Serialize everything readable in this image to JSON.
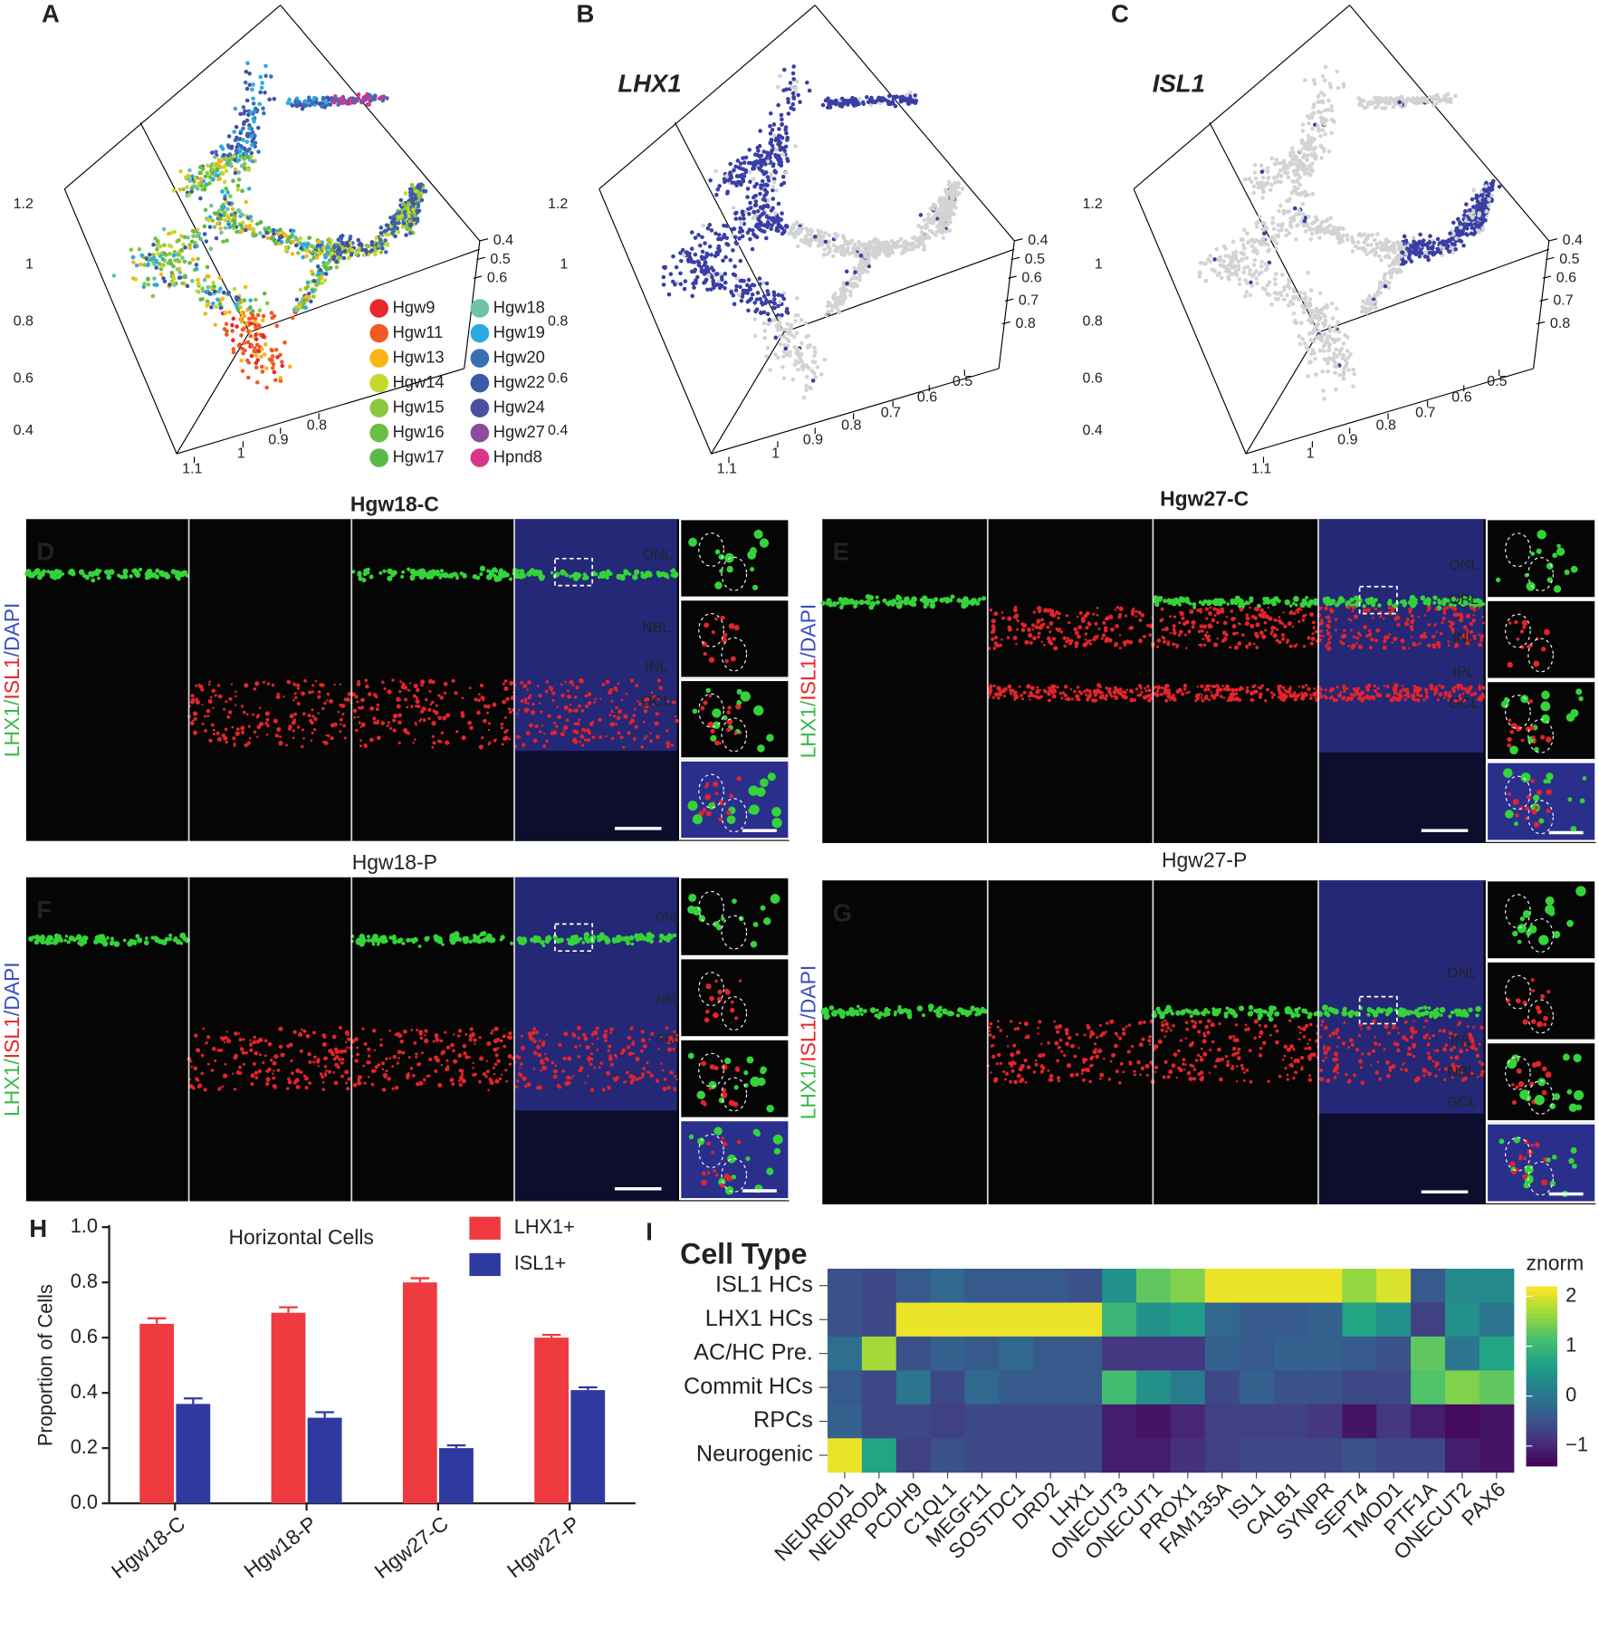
{
  "umap_panels": [
    {
      "label": "A",
      "left_ticks": [
        "1.2",
        "1",
        "0.8",
        "0.6",
        "0.4"
      ],
      "right_ticks": [
        "0.4",
        "0.5",
        "0.6"
      ],
      "bottom_ticks": [
        "1.1",
        "1",
        "0.9",
        "0.8"
      ],
      "legend": [
        {
          "name": "Hgw9",
          "color": "#e8272a"
        },
        {
          "name": "Hgw11",
          "color": "#f05a24"
        },
        {
          "name": "Hgw13",
          "color": "#fbb415"
        },
        {
          "name": "Hgw14",
          "color": "#c4d82e"
        },
        {
          "name": "Hgw15",
          "color": "#8cc63f"
        },
        {
          "name": "Hgw16",
          "color": "#6abd45"
        },
        {
          "name": "Hgw17",
          "color": "#5bb947"
        },
        {
          "name": "Hgw18",
          "color": "#6cc4a4"
        },
        {
          "name": "Hgw19",
          "color": "#29abe2"
        },
        {
          "name": "Hgw20",
          "color": "#3a6fb6"
        },
        {
          "name": "Hgw22",
          "color": "#3b5ba8"
        },
        {
          "name": "Hgw24",
          "color": "#4a4fa0"
        },
        {
          "name": "Hgw27",
          "color": "#8e4a9c"
        },
        {
          "name": "Hpnd8",
          "color": "#d9348b"
        }
      ]
    },
    {
      "label": "B",
      "title": "LHX1",
      "left_ticks": [
        "1.2",
        "1",
        "0.8",
        "0.6",
        "0.4"
      ],
      "right_ticks": [
        "0.4",
        "0.5",
        "0.6",
        "0.7",
        "0.8"
      ],
      "bottom_ticks": [
        "1.1",
        "1",
        "0.9",
        "0.8",
        "0.7",
        "0.6",
        "0.5"
      ]
    },
    {
      "label": "C",
      "title": "ISL1",
      "left_ticks": [
        "1.2",
        "1",
        "0.8",
        "0.6",
        "0.4"
      ],
      "right_ticks": [
        "0.4",
        "0.5",
        "0.6",
        "0.7",
        "0.8"
      ],
      "bottom_ticks": [
        "1.1",
        "1",
        "0.9",
        "0.8",
        "0.7",
        "0.6",
        "0.5"
      ]
    }
  ],
  "micrographs": [
    {
      "label": "D",
      "title": "Hgw18-C",
      "title_bold": true,
      "stain": [
        "LHX1",
        "/",
        "ISL1",
        "/DAPI"
      ],
      "layers": [
        "ONL",
        "NBL",
        "INL",
        "GCL"
      ]
    },
    {
      "label": "E",
      "title": "Hgw27-C",
      "title_bold": true,
      "stain": [
        "LHX1",
        "/",
        "ISL1",
        "/DAPI"
      ],
      "layers": [
        "ONL",
        "OPL",
        "INL",
        "IPL",
        "GCL"
      ]
    },
    {
      "label": "F",
      "title": "Hgw18-P",
      "title_bold": false,
      "stain": [
        "LHX1",
        "/",
        "ISL1",
        "/DAPI"
      ],
      "layers": [
        "ONL",
        "NBL",
        "GCL"
      ]
    },
    {
      "label": "G",
      "title": "Hgw27-P",
      "title_bold": false,
      "stain": [
        "LHX1",
        "/",
        "ISL1",
        "/DAPI"
      ],
      "layers": [
        "ONL",
        "INL",
        "NBL",
        "GCL"
      ]
    }
  ],
  "chart_data": [
    {
      "type": "bar",
      "panel": "H",
      "title": "Horizontal Cells",
      "y_label": "Proportion of Cells",
      "categories": [
        "Hgw18-C",
        "Hgw18-P",
        "Hgw27-C",
        "Hgw27-P"
      ],
      "series": [
        {
          "name": "LHX1+",
          "color": "#ef3b3f",
          "values": [
            0.65,
            0.69,
            0.8,
            0.6
          ],
          "errors": [
            0.02,
            0.02,
            0.015,
            0.01
          ]
        },
        {
          "name": "ISL1+",
          "color": "#2f3aa0",
          "values": [
            0.36,
            0.31,
            0.2,
            0.41
          ],
          "errors": [
            0.02,
            0.02,
            0.01,
            0.01
          ]
        }
      ],
      "ylim": [
        0,
        1
      ],
      "yticks": [
        {
          "value": 0,
          "label": "0.0"
        },
        {
          "value": 0.2,
          "label": "0.2"
        },
        {
          "value": 0.4,
          "label": "0.4"
        },
        {
          "value": 0.6,
          "label": "0.6"
        },
        {
          "value": 0.8,
          "label": "0.8"
        },
        {
          "value": 1,
          "label": "1.0"
        }
      ]
    },
    {
      "type": "heatmap",
      "panel": "I",
      "title": "Cell Type",
      "colorbar_title": "znorm",
      "colormap": "viridis",
      "rows": [
        "ISL1 HCs",
        "LHX1 HCs",
        "AC/HC Pre.",
        "Commit HCs",
        "RPCs",
        "Neurogenic"
      ],
      "columns": [
        "NEUROD1",
        "NEUROD4",
        "PCDH9",
        "C1QL1",
        "MEGF11",
        "SOSTDC1",
        "DRD2",
        "LHX1",
        "ONECUT3",
        "ONECUT1",
        "PROX1",
        "FAM135A",
        "ISL1",
        "CALB1",
        "SYNPR",
        "SEPT4",
        "TMOD1",
        "PTF1A",
        "ONECUT2",
        "PAX6"
      ],
      "values": [
        [
          -0.5,
          -0.6,
          -0.4,
          -0.2,
          -0.4,
          -0.4,
          -0.4,
          -0.5,
          0.4,
          1.3,
          1.5,
          2.1,
          2.1,
          2.1,
          2.1,
          1.6,
          2.0,
          -0.4,
          0.3,
          0.3
        ],
        [
          -0.5,
          -0.6,
          2.1,
          2.1,
          2.1,
          2.1,
          2.1,
          2.1,
          1.0,
          0.4,
          0.6,
          -0.2,
          -0.4,
          -0.4,
          -0.3,
          0.7,
          0.4,
          -0.7,
          0.4,
          0.0
        ],
        [
          -0.1,
          1.7,
          -0.5,
          -0.3,
          -0.4,
          -0.2,
          -0.4,
          -0.4,
          -0.8,
          -0.8,
          -0.8,
          -0.3,
          -0.4,
          -0.3,
          -0.3,
          -0.4,
          -0.5,
          1.3,
          0.0,
          0.7
        ],
        [
          -0.4,
          -0.6,
          0.0,
          -0.6,
          -0.2,
          -0.4,
          -0.4,
          -0.4,
          1.1,
          0.4,
          0.1,
          -0.6,
          -0.3,
          -0.5,
          -0.5,
          -0.6,
          -0.6,
          1.2,
          1.5,
          1.3
        ],
        [
          -0.3,
          -0.6,
          -0.6,
          -0.7,
          -0.6,
          -0.6,
          -0.6,
          -0.6,
          -1.1,
          -1.2,
          -1.0,
          -0.7,
          -0.7,
          -0.7,
          -0.8,
          -1.2,
          -0.8,
          -1.1,
          -1.3,
          -1.2
        ],
        [
          2.1,
          0.7,
          -0.7,
          -0.5,
          -0.6,
          -0.6,
          -0.6,
          -0.6,
          -1.1,
          -1.1,
          -0.9,
          -0.7,
          -0.6,
          -0.6,
          -0.6,
          -0.5,
          -0.6,
          -0.6,
          -1.1,
          -1.2
        ]
      ],
      "zlim": [
        -1.4,
        2.2
      ],
      "zticks": [
        2,
        1,
        0,
        {
          "value": -1,
          "label": "−1"
        }
      ]
    }
  ]
}
